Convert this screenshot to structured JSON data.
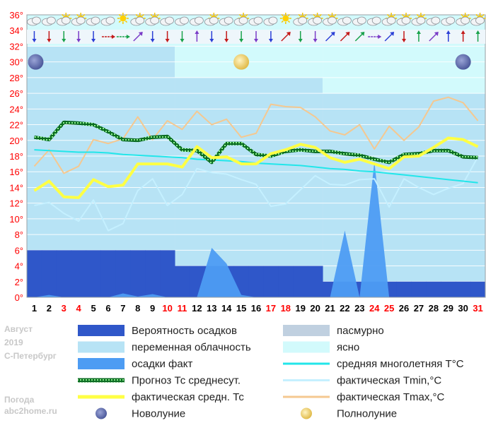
{
  "chart_data": {
    "type": "combo",
    "x": [
      1,
      2,
      3,
      4,
      5,
      6,
      7,
      8,
      9,
      10,
      11,
      12,
      13,
      14,
      15,
      16,
      17,
      18,
      19,
      20,
      21,
      22,
      23,
      24,
      25,
      26,
      27,
      28,
      29,
      30,
      31
    ],
    "weekend_days": [
      3,
      4,
      10,
      11,
      17,
      18,
      24,
      25,
      31
    ],
    "ylim": [
      0,
      36
    ],
    "yticks": [
      "0°",
      "2°",
      "4°",
      "6°",
      "8°",
      "10°",
      "12°",
      "14°",
      "16°",
      "18°",
      "20°",
      "22°",
      "24°",
      "26°",
      "28°",
      "30°",
      "32°",
      "34°",
      "36°"
    ],
    "sky_bands": [
      {
        "days": [
          1,
          10
        ],
        "clear_from": 32,
        "partly_from": 6
      },
      {
        "days": [
          11,
          20
        ],
        "clear_from": 28,
        "partly_from": 4
      },
      {
        "days": [
          21,
          31
        ],
        "clear_from": 26,
        "partly_from": 2
      }
    ],
    "series": [
      {
        "name": "Вероятность осадков",
        "style": "band",
        "values": [
          6,
          6,
          6,
          6,
          6,
          6,
          6,
          6,
          6,
          6,
          4,
          4,
          4,
          4,
          4,
          4,
          4,
          4,
          4,
          4,
          2,
          2,
          2,
          2,
          2,
          2,
          2,
          2,
          2,
          2,
          2
        ]
      },
      {
        "name": "осадки факт",
        "style": "area",
        "values": [
          0,
          0.3,
          0,
          0,
          0,
          0,
          0.5,
          0.1,
          0.4,
          0,
          0,
          0,
          6.3,
          4.3,
          0.3,
          0,
          0,
          0,
          0,
          0,
          0,
          8.5,
          0,
          17.3,
          0,
          0,
          0,
          0,
          0,
          0,
          0
        ]
      },
      {
        "name": "Прогноз Тс среднесут.",
        "style": "dotted",
        "values": [
          20.4,
          20.1,
          22.3,
          22.2,
          22.0,
          21.1,
          20.1,
          20.0,
          20.4,
          20.5,
          18.8,
          18.7,
          17.2,
          19.6,
          19.6,
          18.2,
          18.0,
          18.6,
          18.8,
          18.6,
          18.6,
          18.3,
          18.1,
          17.6,
          17.2,
          18.2,
          18.3,
          18.7,
          18.7,
          17.9,
          17.8
        ]
      },
      {
        "name": "фактическая средн. Тс",
        "style": "thick",
        "values": [
          13.6,
          14.8,
          12.8,
          12.7,
          15.0,
          14.1,
          14.3,
          17.0,
          17.0,
          17.0,
          16.6,
          19.2,
          17.8,
          17.9,
          17.0,
          17.0,
          18.3,
          18.8,
          19.5,
          19.1,
          17.8,
          17.2,
          17.6,
          17.0,
          16.4,
          17.9,
          18.0,
          19.1,
          20.3,
          20.1,
          19.2
        ]
      },
      {
        "name": "средняя многолетняя Т°С",
        "style": "line",
        "values": [
          18.8,
          18.7,
          18.6,
          18.5,
          18.5,
          18.4,
          18.2,
          18.1,
          18.0,
          17.9,
          17.8,
          17.6,
          17.5,
          17.4,
          17.3,
          17.1,
          17.0,
          16.9,
          16.8,
          16.6,
          16.4,
          16.3,
          16.1,
          16.0,
          15.8,
          15.6,
          15.4,
          15.2,
          15.0,
          14.8,
          14.6
        ]
      },
      {
        "name": "фактическая Tmin,°C",
        "style": "line",
        "values": [
          11.7,
          12.1,
          10.7,
          9.7,
          12.4,
          8.5,
          9.4,
          13.6,
          15.1,
          11.7,
          13.1,
          16.4,
          15.9,
          15.7,
          15.0,
          14.4,
          11.6,
          11.9,
          13.7,
          15.5,
          14.4,
          14.3,
          15.0,
          15.1,
          11.5,
          15.1,
          14.0,
          13.1,
          13.9,
          14.5,
          17.9
        ]
      },
      {
        "name": "фактическая Tmax,°C",
        "style": "line",
        "values": [
          16.7,
          18.8,
          15.8,
          16.7,
          20.1,
          19.6,
          20.2,
          23.0,
          20.1,
          22.5,
          21.4,
          23.7,
          22.0,
          22.7,
          20.4,
          20.9,
          24.6,
          24.3,
          24.2,
          23.0,
          21.2,
          20.7,
          22.0,
          18.9,
          21.8,
          20.0,
          21.7,
          25.0,
          25.5,
          24.8,
          22.5
        ]
      }
    ],
    "weather_icons": [
      "cloudy",
      "cloudy",
      "partly-sunny",
      "partly-sunny",
      "cloudy",
      "cloudy",
      "sunny",
      "partly-sunny",
      "partly-sunny",
      "cloudy",
      "cloudy",
      "cloudy",
      "partly-sunny",
      "cloudy",
      "partly-sunny",
      "cloudy",
      "cloudy",
      "sunny",
      "partly-sunny",
      "partly-sunny",
      "partly-sunny",
      "cloudy",
      "cloudy",
      "cloudy",
      "partly-sunny",
      "partly-sunny",
      "partly-sunny",
      "cloudy",
      "cloudy",
      "partly-sunny",
      "partly-sunny"
    ],
    "wind_arrows": [
      "down",
      "down",
      "down",
      "down",
      "down",
      "left-right",
      "left-right",
      "diagonal",
      "down",
      "down",
      "down",
      "up",
      "down",
      "down",
      "down",
      "down",
      "down",
      "diagonal",
      "down",
      "down",
      "diagonal",
      "diagonal",
      "diagonal",
      "left-right",
      "diagonal",
      "down",
      "up",
      "diagonal",
      "up",
      "up",
      "up"
    ],
    "moon_markers": [
      {
        "day": 1,
        "phase": "new-moon"
      },
      {
        "day": 15,
        "phase": "full-moon"
      },
      {
        "day": 30,
        "phase": "new-moon"
      }
    ],
    "side_text": [
      "Август",
      "2019",
      "С-Петербург",
      "Погода",
      "abc2home.ru"
    ],
    "legend": [
      {
        "label": "Вероятность осадков",
        "swatch": "band",
        "color": "#2f57c9"
      },
      {
        "label": "пасмурно",
        "swatch": "band",
        "color": "#c0d0e0"
      },
      {
        "label": "переменная облачность",
        "swatch": "band",
        "color": "#b7e3f5"
      },
      {
        "label": "ясно",
        "swatch": "band",
        "color": "#d2fafc"
      },
      {
        "label": "осадки факт",
        "swatch": "band",
        "color": "#4d9cf3"
      },
      {
        "label": "средняя многолетняя T°C",
        "swatch": "line",
        "color": "#22e6ea"
      },
      {
        "label": "Прогноз Тс среднесут.",
        "swatch": "dotted",
        "color": "#11a03a"
      },
      {
        "label": "фактическая Tmin,°C",
        "swatch": "line",
        "color": "#c5f0ff"
      },
      {
        "label": "фактическая средн. Тс",
        "swatch": "thick",
        "color": "#ffff44"
      },
      {
        "label": "фактическая Tmax,°C",
        "swatch": "line",
        "color": "#f5c890"
      },
      {
        "label": "Новолуние",
        "swatch": "new-moon",
        "color": "#6b78b8"
      },
      {
        "label": "Полнолуние",
        "swatch": "full-moon",
        "color": "#f3d97a"
      }
    ]
  }
}
